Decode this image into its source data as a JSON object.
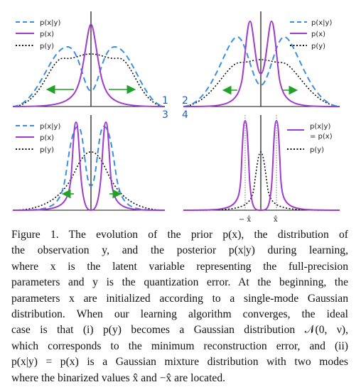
{
  "figure": {
    "panels": [
      {
        "number": "1",
        "legend": [
          "p(x|y)",
          "p(x)",
          "p(y)"
        ]
      },
      {
        "number": "2",
        "legend": [
          "p(x|y)",
          "p(x)",
          "p(y)"
        ]
      },
      {
        "number": "3",
        "legend": [
          "p(x|y)",
          "p(x)",
          "p(y)"
        ]
      },
      {
        "number": "4",
        "legend": [
          "p(x|y)",
          "= p(x)",
          "p(y)"
        ]
      }
    ],
    "panel4_ticks": [
      "− x̂",
      "x̂"
    ],
    "colors": {
      "posterior": "#3b8fe0",
      "prior": "#a13bcc",
      "observation": "#111111",
      "arrow": "#22a02a",
      "axis": "#111111"
    }
  },
  "caption": {
    "lines": [
      "Figure 1. The evolution of the prior p(x), the distribution of",
      "the observation y, and the posterior p(x|y) during learning,",
      "where x is the latent variable representing the full-precision",
      "parameters and y is the quantization error. At the beginning, the",
      "parameters x are initialized according to a single-mode Gaussian",
      "distribution. When our learning algorithm converges, the ideal",
      "case is that (i) p(y) becomes a Gaussian distribution 𝒩(0, ν),",
      "which corresponds to the minimum reconstruction error, and (ii)",
      "p(x|y) = p(x) is a Gaussian mixture distribution with two modes",
      "where the binarized values x̂ and −x̂ are located."
    ]
  }
}
